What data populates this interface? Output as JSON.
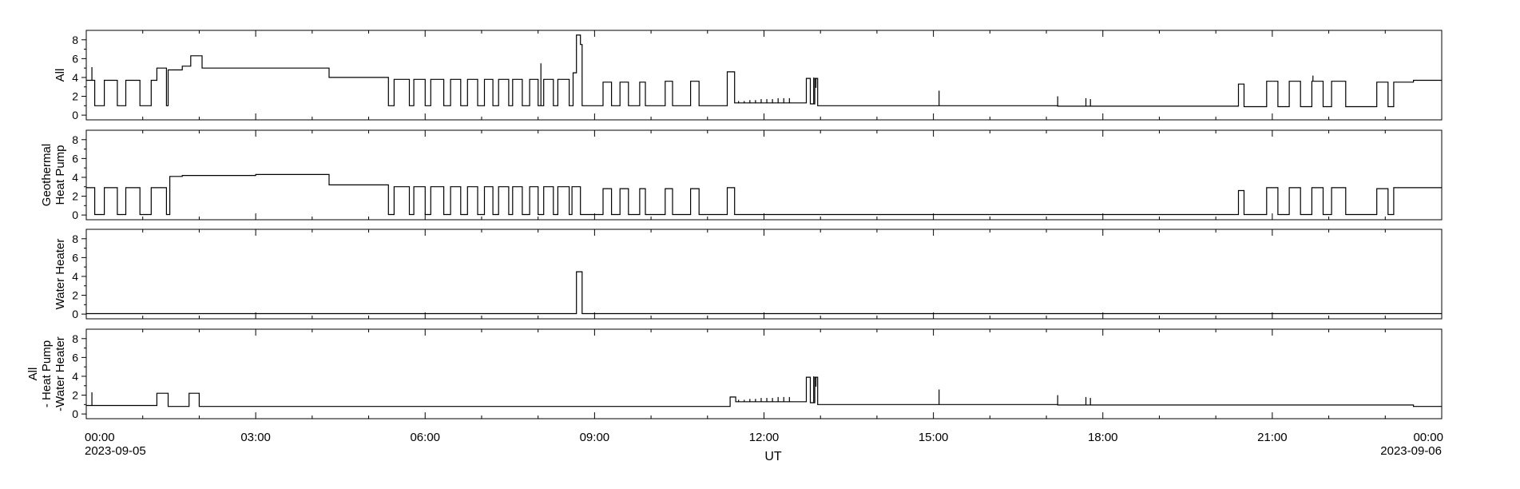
{
  "chart_data": {
    "type": "line",
    "xlabel": "UT",
    "x_start_date": "2023-09-05",
    "x_end_date": "2023-09-06",
    "x_range_hours": [
      0,
      24
    ],
    "x_tick_labels": [
      "00:00",
      "03:00",
      "06:00",
      "09:00",
      "12:00",
      "15:00",
      "18:00",
      "21:00",
      "00:00"
    ],
    "panels": [
      {
        "ylabel": [
          "All"
        ],
        "ylim": [
          -0.5,
          9.0
        ],
        "yticks": [
          0,
          2,
          4,
          6,
          8
        ],
        "steps": [
          [
            0,
            3.7
          ],
          [
            0.15,
            1.0
          ],
          [
            0.32,
            3.7
          ],
          [
            0.55,
            1.0
          ],
          [
            0.7,
            3.7
          ],
          [
            0.95,
            1.0
          ],
          [
            1.15,
            3.7
          ],
          [
            1.25,
            5.0
          ],
          [
            1.42,
            1.0
          ],
          [
            1.45,
            4.8
          ],
          [
            1.7,
            5.2
          ],
          [
            1.85,
            6.3
          ],
          [
            2.05,
            5.0
          ],
          [
            4.3,
            4.0
          ],
          [
            5.35,
            1.0
          ],
          [
            5.45,
            3.8
          ],
          [
            5.72,
            1.0
          ],
          [
            5.8,
            3.8
          ],
          [
            6.0,
            1.0
          ],
          [
            6.1,
            3.8
          ],
          [
            6.33,
            1.0
          ],
          [
            6.45,
            3.8
          ],
          [
            6.63,
            1.0
          ],
          [
            6.75,
            3.8
          ],
          [
            6.93,
            1.0
          ],
          [
            7.05,
            3.8
          ],
          [
            7.2,
            1.0
          ],
          [
            7.3,
            3.8
          ],
          [
            7.48,
            1.0
          ],
          [
            7.55,
            3.8
          ],
          [
            7.72,
            1.0
          ],
          [
            7.85,
            3.8
          ],
          [
            8.0,
            1.0
          ],
          [
            8.1,
            3.8
          ],
          [
            8.27,
            1.0
          ],
          [
            8.35,
            3.8
          ],
          [
            8.55,
            1.0
          ],
          [
            8.62,
            4.5
          ],
          [
            8.68,
            8.5
          ],
          [
            8.75,
            7.5
          ],
          [
            8.78,
            1.0
          ],
          [
            9.15,
            3.5
          ],
          [
            9.3,
            1.0
          ],
          [
            9.45,
            3.5
          ],
          [
            9.6,
            1.0
          ],
          [
            9.8,
            3.5
          ],
          [
            9.9,
            1.0
          ],
          [
            10.25,
            3.6
          ],
          [
            10.38,
            1.0
          ],
          [
            10.7,
            3.6
          ],
          [
            10.85,
            1.0
          ],
          [
            11.35,
            4.6
          ],
          [
            11.48,
            1.3
          ],
          [
            12.75,
            3.9
          ],
          [
            12.82,
            1.2
          ],
          [
            12.9,
            3.9
          ],
          [
            12.95,
            1.0
          ],
          [
            17.2,
            0.95
          ],
          [
            20.4,
            3.3
          ],
          [
            20.5,
            0.9
          ],
          [
            20.9,
            3.6
          ],
          [
            21.1,
            0.9
          ],
          [
            21.3,
            3.6
          ],
          [
            21.5,
            0.9
          ],
          [
            21.7,
            3.6
          ],
          [
            21.9,
            0.9
          ],
          [
            22.05,
            3.6
          ],
          [
            22.3,
            0.9
          ],
          [
            22.85,
            3.5
          ],
          [
            23.05,
            0.9
          ],
          [
            23.15,
            3.5
          ],
          [
            23.5,
            3.7
          ]
        ],
        "spikes": [
          [
            0.1,
            5.1
          ],
          [
            8.05,
            5.5
          ],
          [
            12.88,
            4.0
          ],
          [
            12.92,
            2.9
          ],
          [
            15.1,
            2.6
          ],
          [
            17.2,
            2.0
          ],
          [
            17.7,
            1.8
          ],
          [
            17.78,
            1.7
          ],
          [
            21.72,
            4.2
          ],
          [
            11.55,
            1.5
          ],
          [
            11.65,
            1.5
          ],
          [
            11.75,
            1.6
          ],
          [
            11.85,
            1.6
          ],
          [
            11.95,
            1.7
          ],
          [
            12.05,
            1.7
          ],
          [
            12.15,
            1.7
          ],
          [
            12.25,
            1.8
          ],
          [
            12.35,
            1.8
          ],
          [
            12.45,
            1.8
          ]
        ]
      },
      {
        "ylabel": [
          "Geothermal",
          "Heat Pump"
        ],
        "ylim": [
          -0.5,
          9.0
        ],
        "yticks": [
          0,
          2,
          4,
          6,
          8
        ],
        "steps": [
          [
            0,
            2.9
          ],
          [
            0.15,
            0.05
          ],
          [
            0.32,
            2.9
          ],
          [
            0.55,
            0.05
          ],
          [
            0.7,
            2.9
          ],
          [
            0.95,
            0.05
          ],
          [
            1.15,
            2.9
          ],
          [
            1.42,
            0.05
          ],
          [
            1.48,
            4.1
          ],
          [
            1.7,
            4.2
          ],
          [
            3.0,
            4.3
          ],
          [
            4.3,
            3.2
          ],
          [
            5.35,
            0.05
          ],
          [
            5.45,
            3.0
          ],
          [
            5.72,
            0.05
          ],
          [
            5.8,
            3.0
          ],
          [
            6.0,
            0.05
          ],
          [
            6.1,
            3.0
          ],
          [
            6.33,
            0.05
          ],
          [
            6.45,
            3.0
          ],
          [
            6.63,
            0.05
          ],
          [
            6.75,
            3.0
          ],
          [
            6.93,
            0.05
          ],
          [
            7.05,
            3.0
          ],
          [
            7.2,
            0.05
          ],
          [
            7.3,
            3.0
          ],
          [
            7.48,
            0.05
          ],
          [
            7.55,
            3.0
          ],
          [
            7.72,
            0.05
          ],
          [
            7.85,
            3.0
          ],
          [
            8.0,
            0.05
          ],
          [
            8.1,
            3.0
          ],
          [
            8.27,
            0.05
          ],
          [
            8.35,
            3.0
          ],
          [
            8.55,
            0.05
          ],
          [
            8.6,
            3.0
          ],
          [
            8.75,
            0.05
          ],
          [
            9.15,
            2.8
          ],
          [
            9.3,
            0.05
          ],
          [
            9.45,
            2.8
          ],
          [
            9.6,
            0.05
          ],
          [
            9.8,
            2.8
          ],
          [
            9.9,
            0.05
          ],
          [
            10.25,
            2.8
          ],
          [
            10.38,
            0.05
          ],
          [
            10.7,
            2.8
          ],
          [
            10.85,
            0.05
          ],
          [
            11.35,
            2.9
          ],
          [
            11.48,
            0.05
          ],
          [
            20.4,
            2.6
          ],
          [
            20.5,
            0.05
          ],
          [
            20.9,
            2.9
          ],
          [
            21.1,
            0.05
          ],
          [
            21.3,
            2.9
          ],
          [
            21.5,
            0.05
          ],
          [
            21.7,
            2.9
          ],
          [
            21.9,
            0.05
          ],
          [
            22.05,
            2.9
          ],
          [
            22.3,
            0.05
          ],
          [
            22.85,
            2.8
          ],
          [
            23.05,
            0.05
          ],
          [
            23.15,
            2.9
          ]
        ],
        "spikes": []
      },
      {
        "ylabel": [
          "Water Heater"
        ],
        "ylim": [
          -0.5,
          9.0
        ],
        "yticks": [
          0,
          2,
          4,
          6,
          8
        ],
        "steps": [
          [
            0,
            0.05
          ],
          [
            8.68,
            4.5
          ],
          [
            8.78,
            0.05
          ]
        ],
        "spikes": []
      },
      {
        "ylabel": [
          "All",
          "- Heat Pump",
          "-Water Heater"
        ],
        "ylim": [
          -0.5,
          9.0
        ],
        "yticks": [
          0,
          2,
          4,
          6,
          8
        ],
        "steps": [
          [
            0,
            0.9
          ],
          [
            1.25,
            2.2
          ],
          [
            1.45,
            0.8
          ],
          [
            1.82,
            2.2
          ],
          [
            2.0,
            0.8
          ],
          [
            11.4,
            1.8
          ],
          [
            11.5,
            1.3
          ],
          [
            12.75,
            3.9
          ],
          [
            12.82,
            1.2
          ],
          [
            12.9,
            3.9
          ],
          [
            12.95,
            1.0
          ],
          [
            17.2,
            0.95
          ],
          [
            23.5,
            0.8
          ]
        ],
        "spikes": [
          [
            0.1,
            2.3
          ],
          [
            12.88,
            4.0
          ],
          [
            12.92,
            2.9
          ],
          [
            15.1,
            2.6
          ],
          [
            17.2,
            2.0
          ],
          [
            17.7,
            1.8
          ],
          [
            17.78,
            1.7
          ],
          [
            11.55,
            1.5
          ],
          [
            11.65,
            1.5
          ],
          [
            11.75,
            1.6
          ],
          [
            11.85,
            1.6
          ],
          [
            11.95,
            1.7
          ],
          [
            12.05,
            1.7
          ],
          [
            12.15,
            1.7
          ],
          [
            12.25,
            1.8
          ],
          [
            12.35,
            1.8
          ],
          [
            12.45,
            1.8
          ]
        ]
      }
    ]
  }
}
